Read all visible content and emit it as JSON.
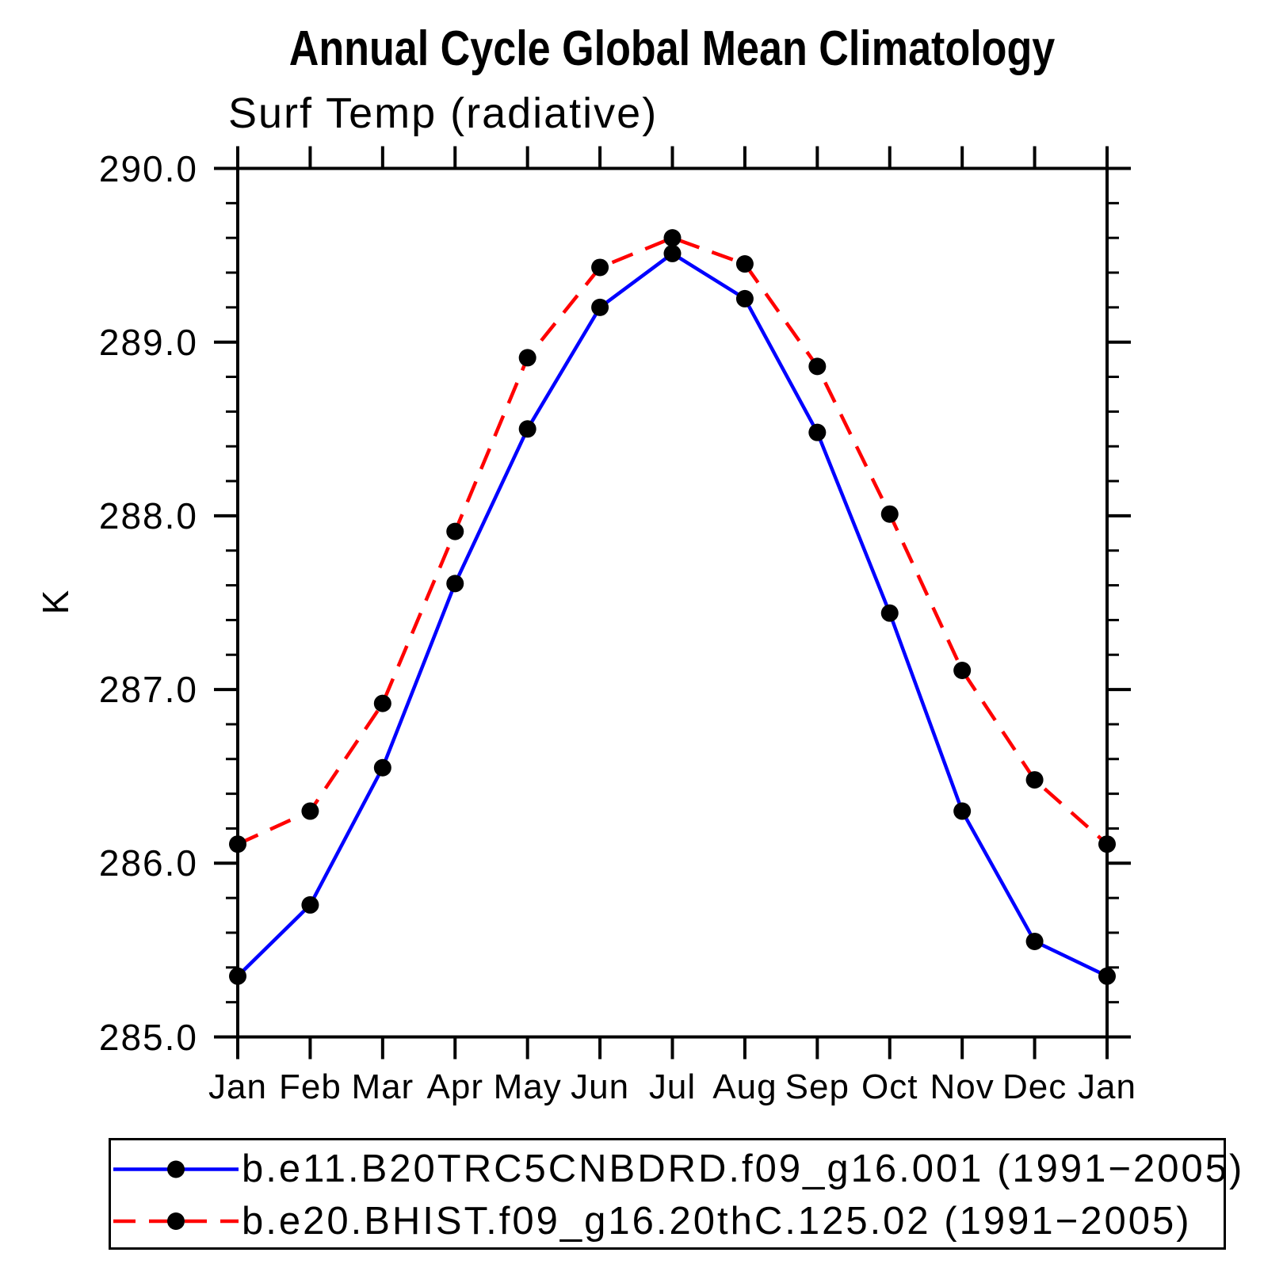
{
  "title": "Annual Cycle Global Mean Climatology",
  "subtitle": "Surf Temp (radiative)",
  "chart_data": {
    "type": "line",
    "title": "Annual Cycle Global Mean Climatology",
    "subtitle": "Surf Temp (radiative)",
    "ylabel": "K",
    "xlabel": "",
    "ylim": [
      285.0,
      290.0
    ],
    "y_major_interval": 1.0,
    "y_minor_interval": 0.2,
    "grid": false,
    "legend_position": "bottom",
    "y_major_ticks": [
      "290.0",
      "289.0",
      "288.0",
      "287.0",
      "286.0",
      "285.0"
    ],
    "x_categories": [
      "Jan",
      "Feb",
      "Mar",
      "Apr",
      "May",
      "Jun",
      "Jul",
      "Aug",
      "Sep",
      "Oct",
      "Nov",
      "Dec",
      "Jan"
    ],
    "marker_color": "#000000",
    "frame_color": "#000000",
    "series": [
      {
        "name": "b.e11.B20TRC5CNBDRD.f09_g16.001 (1991−2005)",
        "color": "#0000ff",
        "style": "solid",
        "marker": "circle",
        "values": [
          285.35,
          285.76,
          286.55,
          287.61,
          288.5,
          289.2,
          289.51,
          289.25,
          288.48,
          287.44,
          286.3,
          285.55,
          285.35
        ]
      },
      {
        "name": "b.e20.BHIST.f09_g16.20thC.125.02 (1991−2005)",
        "color": "#ff0000",
        "style": "dashed",
        "marker": "circle",
        "values": [
          286.11,
          286.3,
          286.92,
          287.91,
          288.91,
          289.43,
          289.6,
          289.45,
          288.86,
          288.01,
          287.11,
          286.48,
          286.11
        ]
      }
    ]
  }
}
